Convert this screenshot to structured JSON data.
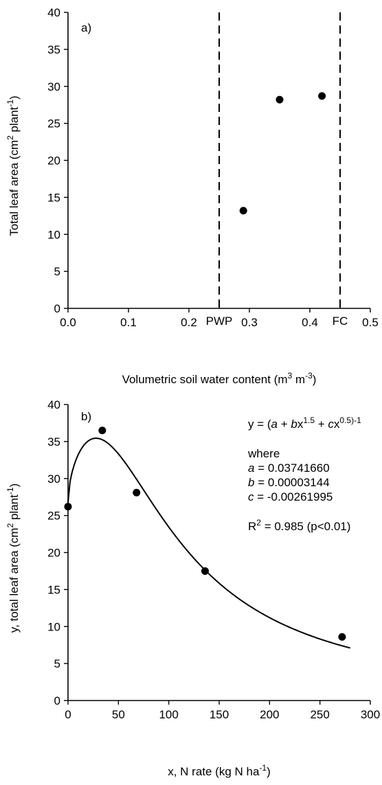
{
  "chart_data": [
    {
      "type": "scatter",
      "panel_label": "a)",
      "title": "",
      "xlabel": "Volumetric soil water content (m",
      "xlabel_parts": [
        {
          "t": "Volumetric soil water content (m"
        },
        {
          "t": "3",
          "sup": true
        },
        {
          "t": " m"
        },
        {
          "t": "-3",
          "sup": true
        },
        {
          "t": ")"
        }
      ],
      "ylabel": "Total leaf area (cm",
      "ylabel_parts": [
        {
          "t": "Total leaf area (cm"
        },
        {
          "t": "2",
          "sup": true
        },
        {
          "t": " plant"
        },
        {
          "t": "-1",
          "sup": true
        },
        {
          "t": ")"
        }
      ],
      "xlim": [
        0.0,
        0.5
      ],
      "ylim": [
        0,
        40
      ],
      "x_ticks": [
        0.0,
        0.1,
        0.2,
        0.3,
        0.4,
        0.5
      ],
      "x_tick_labels": [
        "0.0",
        "0.1",
        "0.2",
        "0.3",
        "0.4",
        "0.5"
      ],
      "y_ticks": [
        0,
        5,
        10,
        15,
        20,
        25,
        30,
        35,
        40
      ],
      "y_tick_labels": [
        "0",
        "5",
        "10",
        "15",
        "20",
        "25",
        "30",
        "35",
        "40"
      ],
      "points": [
        {
          "x": 0.29,
          "y": 13.2
        },
        {
          "x": 0.35,
          "y": 28.2
        },
        {
          "x": 0.42,
          "y": 28.7
        }
      ],
      "reference_lines": [
        {
          "x": 0.25,
          "label": "PWP",
          "style": "dashed"
        },
        {
          "x": 0.45,
          "label": "FC",
          "style": "dashed"
        }
      ],
      "grid": false,
      "legend": "none"
    },
    {
      "type": "scatter",
      "panel_label": "b)",
      "title": "",
      "xlabel": "x, N rate (kg N ha",
      "xlabel_parts": [
        {
          "t": "x, N rate (kg N ha"
        },
        {
          "t": "-1",
          "sup": true
        },
        {
          "t": ")"
        }
      ],
      "ylabel": "y, total leaf area (cm",
      "ylabel_parts": [
        {
          "t": "y, total leaf area (cm"
        },
        {
          "t": "2",
          "sup": true
        },
        {
          "t": " plant"
        },
        {
          "t": "-1",
          "sup": true
        },
        {
          "t": ")"
        }
      ],
      "xlim": [
        0,
        300
      ],
      "ylim": [
        0,
        40
      ],
      "x_ticks": [
        0,
        50,
        100,
        150,
        200,
        250,
        300
      ],
      "x_tick_labels": [
        "0",
        "50",
        "100",
        "150",
        "200",
        "250",
        "300"
      ],
      "y_ticks": [
        0,
        5,
        10,
        15,
        20,
        25,
        30,
        35,
        40
      ],
      "y_tick_labels": [
        "0",
        "5",
        "10",
        "15",
        "20",
        "25",
        "30",
        "35",
        "40"
      ],
      "points": [
        {
          "x": 0,
          "y": 26.2
        },
        {
          "x": 34,
          "y": 36.5
        },
        {
          "x": 68,
          "y": 28.1
        },
        {
          "x": 136,
          "y": 17.5
        },
        {
          "x": 272,
          "y": 8.6
        }
      ],
      "fit": {
        "a": 0.0374166,
        "b": 3.144e-05,
        "c": -0.00261995,
        "x_range": [
          0,
          280
        ]
      },
      "equation_lines": [
        [
          {
            "t": "y = ("
          },
          {
            "t": "a",
            "i": true
          },
          {
            "t": " + "
          },
          {
            "t": "b",
            "i": true
          },
          {
            "t": "x"
          },
          {
            "t": "1.5",
            "sup": true
          },
          {
            "t": " + "
          },
          {
            "t": "c",
            "i": true
          },
          {
            "t": "x"
          },
          {
            "t": "0.5)",
            "sup": true
          },
          {
            "t": "-1",
            "sup": true
          }
        ],
        [
          {
            "t": "where"
          }
        ],
        [
          {
            "t": "a",
            "i": true
          },
          {
            "t": " = 0.03741660"
          }
        ],
        [
          {
            "t": "b",
            "i": true
          },
          {
            "t": " = 0.00003144"
          }
        ],
        [
          {
            "t": "c",
            "i": true
          },
          {
            "t": " = -0.00261995"
          }
        ],
        [
          {
            "t": "R"
          },
          {
            "t": "2",
            "sup": true
          },
          {
            "t": " = 0.985 (p<0.01)"
          }
        ]
      ],
      "grid": false,
      "legend": "none"
    }
  ]
}
